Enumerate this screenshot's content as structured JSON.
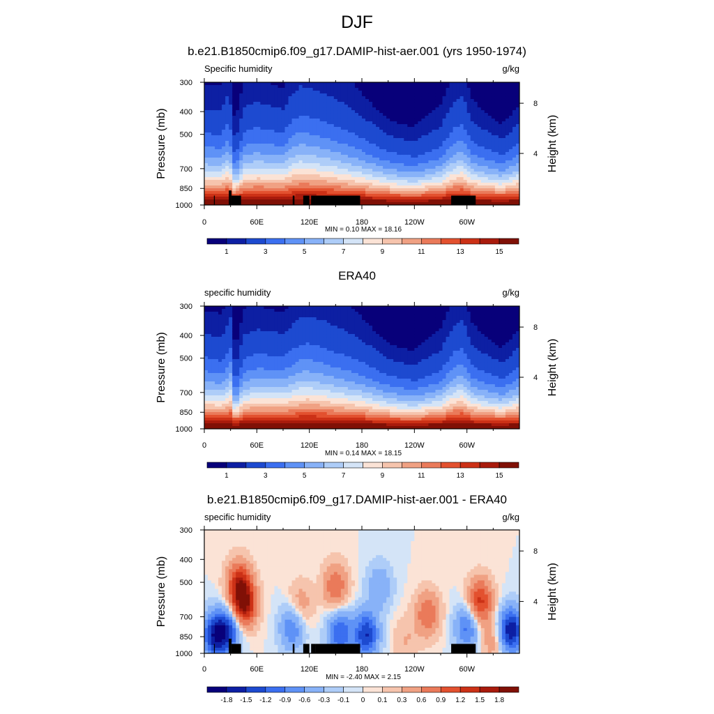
{
  "figure": {
    "title": "DJF"
  },
  "chart_data": [
    {
      "type": "heatmap",
      "title": "b.e21.B1850cmip6.f09_g17.DAMIP-hist-aer.001 (yrs 1950-1974)",
      "left_label": "Specific humidity",
      "right_label": "g/kg",
      "xlabel": "",
      "ylabel": "Pressure (mb)",
      "y2label": "Height (km)",
      "x_ticks": [
        "0",
        "60E",
        "120E",
        "180",
        "120W",
        "60W"
      ],
      "y_ticks": [
        "300",
        "400",
        "500",
        "700",
        "850",
        "1000"
      ],
      "y2_ticks": [
        "8",
        "4"
      ],
      "log_pressure_axis": true,
      "ylim": [
        1000,
        300
      ],
      "x_range_deg_east": [
        0,
        360
      ],
      "stats": "MIN =   0.10  MAX =  18.16",
      "colorbar_labels": [
        "1",
        "3",
        "5",
        "7",
        "9",
        "11",
        "13",
        "15"
      ],
      "colorbar_levels": [
        0.5,
        1,
        2,
        3,
        4,
        5,
        6,
        7,
        8,
        9,
        10,
        11,
        12,
        13,
        14,
        15
      ],
      "colors": [
        "#08007a",
        "#0d1fa3",
        "#1d4ad0",
        "#3b6ff0",
        "#5f92f6",
        "#88b2f8",
        "#aecdf8",
        "#d4e4f7",
        "#fbe3d6",
        "#f6c4ad",
        "#f0a183",
        "#ea7a5a",
        "#e3512f",
        "#cc3116",
        "#a91b0c",
        "#801006"
      ],
      "profile": [
        [
          0,
          2.5
        ],
        [
          20,
          2.4
        ],
        [
          28,
          2.9
        ],
        [
          35,
          1.6
        ],
        [
          45,
          2.5
        ],
        [
          60,
          2.7
        ],
        [
          90,
          2.6
        ],
        [
          100,
          3.0
        ],
        [
          110,
          3.2
        ],
        [
          120,
          3.1
        ],
        [
          150,
          2.7
        ],
        [
          180,
          2.3
        ],
        [
          210,
          1.9
        ],
        [
          240,
          1.7
        ],
        [
          270,
          2.0
        ],
        [
          285,
          2.6
        ],
        [
          295,
          2.8
        ],
        [
          305,
          2.2
        ],
        [
          320,
          2.0
        ],
        [
          340,
          1.8
        ],
        [
          360,
          2.2
        ]
      ],
      "topography_mb": [
        [
          11,
          12,
          912
        ],
        [
          28,
          31,
          867
        ],
        [
          31,
          42,
          912
        ],
        [
          101,
          103,
          912
        ],
        [
          113,
          120,
          912
        ],
        [
          122,
          127,
          912
        ],
        [
          127,
          178,
          912
        ],
        [
          282,
          310,
          912
        ]
      ]
    },
    {
      "type": "heatmap",
      "title": "ERA40",
      "left_label": "specific humidity",
      "right_label": "g/kg",
      "xlabel": "",
      "ylabel": "Pressure (mb)",
      "y2label": "Height (km)",
      "x_ticks": [
        "0",
        "60E",
        "120E",
        "180",
        "120W",
        "60W"
      ],
      "y_ticks": [
        "300",
        "400",
        "500",
        "700",
        "850",
        "1000"
      ],
      "y2_ticks": [
        "8",
        "4"
      ],
      "log_pressure_axis": true,
      "ylim": [
        1000,
        300
      ],
      "x_range_deg_east": [
        0,
        360
      ],
      "stats": "MIN =   0.14  MAX =  18.15",
      "colorbar_labels": [
        "1",
        "3",
        "5",
        "7",
        "9",
        "11",
        "13",
        "15"
      ],
      "colorbar_levels": [
        0.5,
        1,
        2,
        3,
        4,
        5,
        6,
        7,
        8,
        9,
        10,
        11,
        12,
        13,
        14,
        15
      ],
      "colors": [
        "#08007a",
        "#0d1fa3",
        "#1d4ad0",
        "#3b6ff0",
        "#5f92f6",
        "#88b2f8",
        "#aecdf8",
        "#d4e4f7",
        "#fbe3d6",
        "#f6c4ad",
        "#f0a183",
        "#ea7a5a",
        "#e3512f",
        "#cc3116",
        "#a91b0c",
        "#801006"
      ],
      "profile": [
        [
          0,
          2.5
        ],
        [
          20,
          2.3
        ],
        [
          30,
          2.8
        ],
        [
          35,
          1.5
        ],
        [
          45,
          2.4
        ],
        [
          60,
          2.6
        ],
        [
          90,
          2.6
        ],
        [
          110,
          3.0
        ],
        [
          120,
          3.0
        ],
        [
          150,
          2.6
        ],
        [
          180,
          2.3
        ],
        [
          210,
          1.9
        ],
        [
          240,
          1.7
        ],
        [
          270,
          2.0
        ],
        [
          285,
          2.6
        ],
        [
          295,
          2.8
        ],
        [
          305,
          2.2
        ],
        [
          320,
          2.0
        ],
        [
          340,
          1.8
        ],
        [
          360,
          2.2
        ]
      ],
      "topography_mb": []
    },
    {
      "type": "heatmap",
      "title": "b.e21.B1850cmip6.f09_g17.DAMIP-hist-aer.001 - ERA40",
      "left_label": "specific humidity",
      "right_label": "g/kg",
      "xlabel": "",
      "ylabel": "Pressure (mb)",
      "y2label": "Height (km)",
      "x_ticks": [
        "0",
        "60E",
        "120E",
        "180",
        "120W",
        "60W"
      ],
      "y_ticks": [
        "300",
        "400",
        "500",
        "700",
        "850",
        "1000"
      ],
      "y2_ticks": [
        "8",
        "4"
      ],
      "log_pressure_axis": true,
      "ylim": [
        1000,
        300
      ],
      "x_range_deg_east": [
        0,
        360
      ],
      "stats": "MIN =  -2.40  MAX =   2.15",
      "colorbar_labels": [
        "-1.8",
        "-1.5",
        "-1.2",
        "-0.9",
        "-0.6",
        "-0.3",
        "-0.1",
        "0",
        "0.1",
        "0.3",
        "0.6",
        "0.9",
        "1.2",
        "1.5",
        "1.8"
      ],
      "colorbar_levels": [
        -1.8,
        -1.5,
        -1.2,
        -0.9,
        -0.6,
        -0.3,
        -0.1,
        0,
        0.1,
        0.3,
        0.6,
        0.9,
        1.2,
        1.5,
        1.8
      ],
      "colors": [
        "#08007a",
        "#0d1fa3",
        "#1d4ad0",
        "#3b6ff0",
        "#5f92f6",
        "#88b2f8",
        "#aecdf8",
        "#d4e4f7",
        "#fbe3d6",
        "#f6c4ad",
        "#f0a183",
        "#ea7a5a",
        "#e3512f",
        "#cc3116",
        "#a91b0c",
        "#801006"
      ],
      "anomalies": [
        {
          "lon": 45,
          "p": 620,
          "value": 1.8
        },
        {
          "lon": 40,
          "p": 500,
          "value": 1.2
        },
        {
          "lon": 12,
          "p": 840,
          "value": -1.6
        },
        {
          "lon": 28,
          "p": 800,
          "value": -1.3
        },
        {
          "lon": 150,
          "p": 520,
          "value": 0.9
        },
        {
          "lon": 110,
          "p": 620,
          "value": 0.5
        },
        {
          "lon": 100,
          "p": 780,
          "value": -0.9
        },
        {
          "lon": 155,
          "p": 820,
          "value": -1.2
        },
        {
          "lon": 185,
          "p": 830,
          "value": -1.5
        },
        {
          "lon": 200,
          "p": 520,
          "value": -0.6
        },
        {
          "lon": 255,
          "p": 680,
          "value": 0.9
        },
        {
          "lon": 300,
          "p": 780,
          "value": -1.0
        },
        {
          "lon": 315,
          "p": 600,
          "value": 1.3
        },
        {
          "lon": 350,
          "p": 800,
          "value": -1.8
        },
        {
          "lon": 330,
          "p": 880,
          "value": 0.5
        },
        {
          "lon": 230,
          "p": 880,
          "value": 0.3
        }
      ],
      "topography_mb": [
        [
          11,
          12,
          912
        ],
        [
          28,
          31,
          867
        ],
        [
          31,
          42,
          912
        ],
        [
          101,
          103,
          912
        ],
        [
          113,
          120,
          912
        ],
        [
          122,
          127,
          912
        ],
        [
          127,
          178,
          912
        ],
        [
          282,
          310,
          912
        ]
      ]
    }
  ]
}
